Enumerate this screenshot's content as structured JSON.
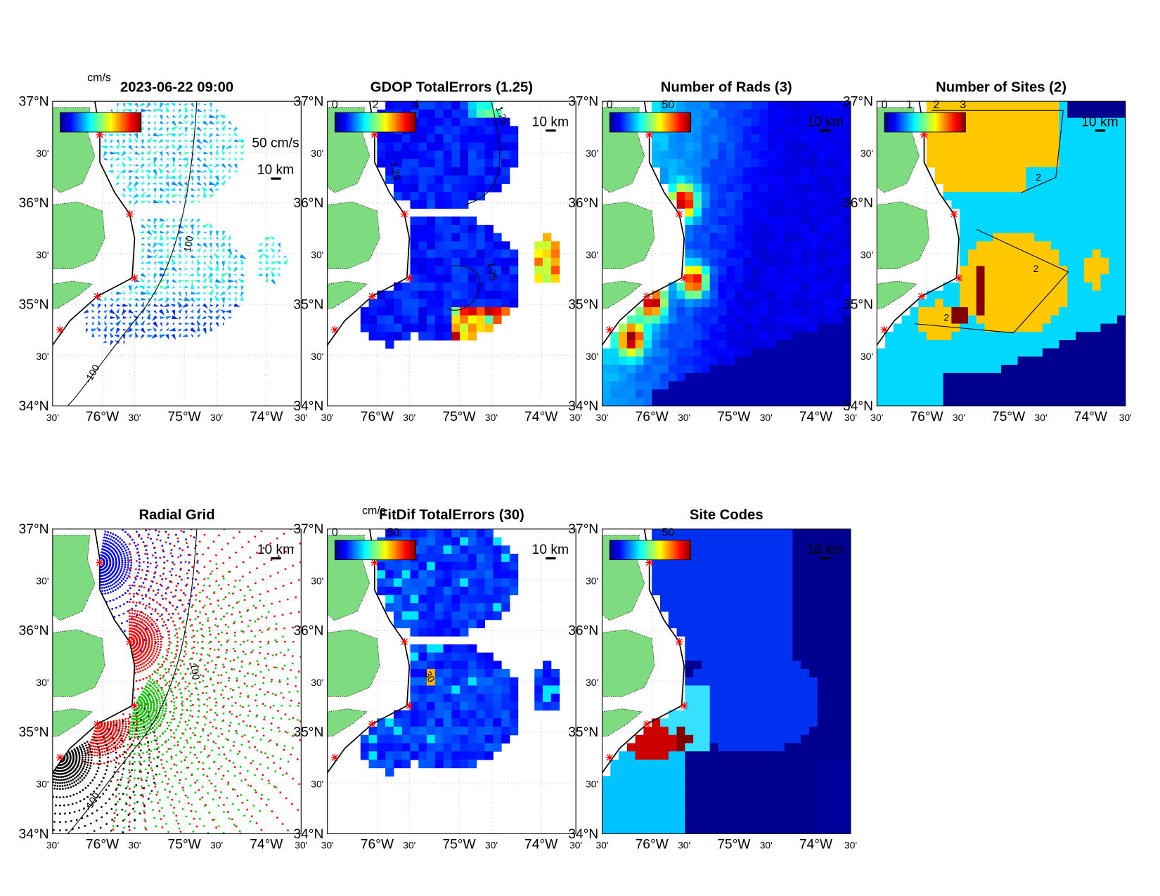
{
  "lat_labels": [
    "37°N",
    "30'",
    "36°N",
    "30'",
    "35°N",
    "30'",
    "34°N"
  ],
  "lon_labels": [
    "30'",
    "76°W",
    "30'",
    "75°W",
    "30'",
    "74°W",
    "30'"
  ],
  "panels": [
    {
      "title": "2023-06-22 09:00",
      "unit": "cm/s",
      "scale": "10 km",
      "vector_scale": "50 cm/s",
      "contours": [
        "-100",
        "100"
      ]
    },
    {
      "title": "GDOP TotalErrors (1.25)",
      "colorbar_ticks": [
        "0",
        "2",
        "4"
      ],
      "scale": "10 km",
      "contours": [
        "1.25",
        "1.25",
        "1.25"
      ]
    },
    {
      "title": "Number of Rads (3)",
      "colorbar_ticks": [
        "0",
        "50"
      ],
      "scale": "10 km"
    },
    {
      "title": "Number of Sites (2)",
      "colorbar_ticks": [
        "0",
        "1",
        "2",
        "3"
      ],
      "scale": "10 km",
      "contours": [
        "2",
        "2",
        "2"
      ]
    },
    {
      "title": "Radial Grid",
      "scale": "10 km",
      "contours": [
        "100",
        "-100"
      ]
    },
    {
      "title": "FitDif TotalErrors (30)",
      "unit": "cm/s",
      "colorbar_ticks": [
        "0",
        "50"
      ],
      "scale": "10 km",
      "contours": [
        "30"
      ]
    },
    {
      "title": "Site Codes",
      "colorbar_ticks": [
        "50"
      ],
      "scale": "10 km"
    }
  ]
}
